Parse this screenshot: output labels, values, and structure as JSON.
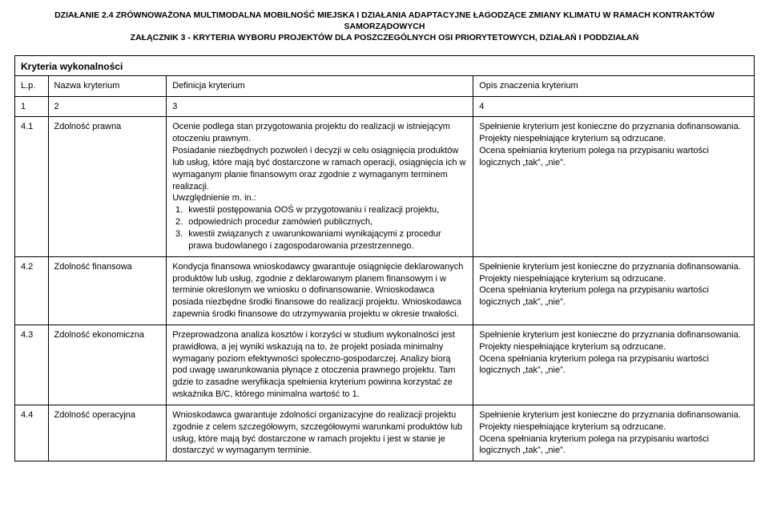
{
  "heading_line1": "DZIAŁANIE 2.4 ZRÓWNOWAŻONA MULTIMODALNA MOBILNOŚĆ MIEJSKA I DZIAŁANIA ADAPTACYJNE ŁAGODZĄCE ZMIANY KLIMATU W RAMACH KONTRAKTÓW SAMORZĄDOWYCH",
  "heading_line2": "ZAŁĄCZNIK 3 - KRYTERIA WYBORU PROJEKTÓW DLA POSZCZEGÓLNYCH OSI PRIORYTETOWYCH, DZIAŁAŃ I PODDZIAŁAŃ",
  "section_title": "Kryteria wykonalności",
  "headers": {
    "c1": "L.p.",
    "c2": "Nazwa kryterium",
    "c3": "Definicja kryterium",
    "c4": "Opis znaczenia kryterium"
  },
  "numrow": {
    "c1": "1",
    "c2": "2",
    "c3": "3",
    "c4": "4"
  },
  "rows": [
    {
      "lp": "4.1",
      "name": "Zdolność prawna",
      "def_intro": "Ocenie podlega stan przygotowania projektu do realizacji w istniejącym otoczeniu prawnym.",
      "def_para2": "Posiadanie niezbędnych pozwoleń i decyzji w celu osiągnięcia produktów lub usług, które mają być dostarczone w ramach operacji, osiągnięcia ich w wymaganym planie finansowym oraz zgodnie z wymaganym terminem realizacji.",
      "def_para3": "Uwzględnienie m. in.:",
      "def_list": [
        "kwestii postępowania OOŚ w przygotowaniu i realizacji projektu,",
        "odpowiednich procedur zamówień publicznych,",
        "kwestii związanych z uwarunkowaniami wynikającymi z procedur prawa budowlanego i zagospodarowania przestrzennego."
      ],
      "opis": "Spełnienie kryterium jest konieczne do przyznania dofinansowania.\nProjekty niespełniające kryterium są odrzucane.\nOcena spełniania kryterium polega na przypisaniu wartości logicznych „tak”, „nie”."
    },
    {
      "lp": "4.2",
      "name": "Zdolność finansowa",
      "def": "Kondycja finansowa wnioskodawcy gwarantuje osiągnięcie deklarowanych produktów lub usług, zgodnie z deklarowanym planem finansowym i w terminie określonym we wniosku o dofinansowanie. Wnioskodawca posiada niezbędne środki finansowe do realizacji projektu. Wnioskodawca zapewnia środki finansowe do utrzymywania projektu w okresie trwałości.",
      "opis": "Spełnienie kryterium jest konieczne do przyznania dofinansowania.\nProjekty niespełniające kryterium są odrzucane.\nOcena spełniania kryterium polega na przypisaniu wartości logicznych „tak”, „nie”."
    },
    {
      "lp": "4.3",
      "name": "Zdolność ekonomiczna",
      "def": "Przeprowadzona analiza kosztów i korzyści w studium wykonalności jest prawidłowa, a jej wyniki wskazują na to, że projekt posiada minimalny wymagany poziom efektywności społeczno-gospodarczej. Analizy biorą pod uwagę uwarunkowania płynące z otoczenia prawnego projektu. Tam gdzie to zasadne weryfikacja spełnienia kryterium powinna korzystać ze wskaźnika B/C, którego minimalna wartość to 1.",
      "opis": "Spełnienie kryterium jest konieczne do przyznania dofinansowania.\nProjekty niespełniające kryterium są odrzucane.\nOcena spełniania kryterium polega na przypisaniu wartości logicznych „tak”, „nie”."
    },
    {
      "lp": "4.4",
      "name": "Zdolność operacyjna",
      "def": "Wnioskodawca gwarantuje zdolności organizacyjne do realizacji projektu zgodnie z celem szczegółowym, szczegółowymi warunkami produktów lub usług, które mają być dostarczone w ramach projektu i jest w stanie je dostarczyć w wymaganym terminie.",
      "opis": "Spełnienie kryterium jest konieczne do przyznania dofinansowania.\nProjekty niespełniające kryterium są odrzucane.\nOcena spełniania kryterium polega na przypisaniu wartości logicznych „tak”, „nie”."
    }
  ]
}
